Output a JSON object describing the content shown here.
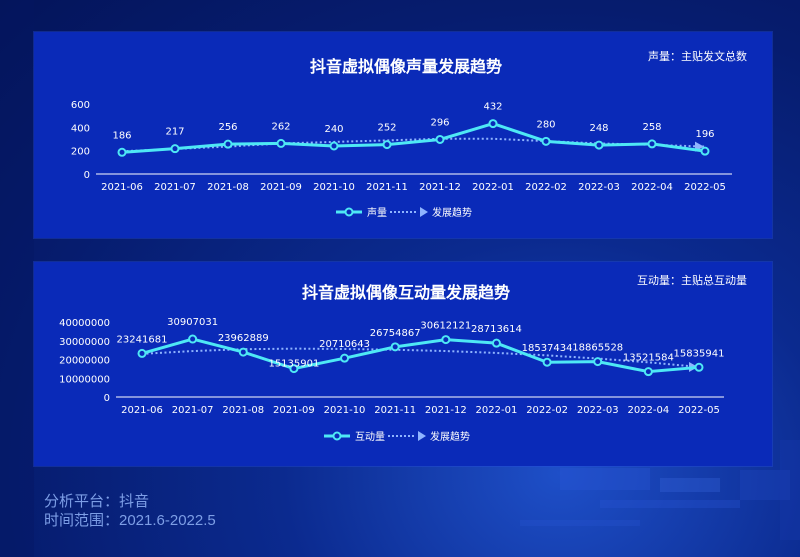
{
  "footer": {
    "platform_line": "分析平台：抖音",
    "range_line": "时间范围：2021.6-2022.5"
  },
  "colors": {
    "page_bg": "#061c6e",
    "panel_bg": "#0a2ab8",
    "series_line": "#4ee8f5",
    "trend_line": "#8fb4ff",
    "text": "#ffffff"
  },
  "chart_data": [
    {
      "type": "line",
      "title": "抖音虚拟偶像声量发展趋势",
      "note": "声量：主贴发文总数",
      "categories": [
        "2021-06",
        "2021-07",
        "2021-08",
        "2021-09",
        "2021-10",
        "2021-11",
        "2021-12",
        "2022-01",
        "2022-02",
        "2022-03",
        "2022-04",
        "2022-05"
      ],
      "series": [
        {
          "name": "声量",
          "values": [
            186,
            217,
            256,
            262,
            240,
            252,
            296,
            432,
            280,
            248,
            258,
            196
          ]
        },
        {
          "name": "发展趋势",
          "style": "dotted-trend",
          "values": [
            195,
            215,
            235,
            262,
            275,
            288,
            302,
            302,
            282,
            262,
            250,
            235
          ]
        }
      ],
      "yticks": [
        0,
        200,
        400,
        600
      ],
      "ylim": [
        0,
        600
      ],
      "legend": "bottom-center",
      "grid": false
    },
    {
      "type": "line",
      "title": "抖音虚拟偶像互动量发展趋势",
      "note": "互动量：主贴总互动量",
      "categories": [
        "2021-06",
        "2021-07",
        "2021-08",
        "2021-09",
        "2021-10",
        "2021-11",
        "2021-12",
        "2022-01",
        "2022-02",
        "2022-03",
        "2022-04",
        "2022-05"
      ],
      "series": [
        {
          "name": "互动量",
          "values": [
            23241681,
            30907031,
            23962889,
            15135901,
            20710643,
            26754867,
            30612121,
            28713614,
            18537434,
            18865528,
            13521584,
            15835941
          ]
        },
        {
          "name": "发展趋势",
          "style": "dotted-trend",
          "values": [
            23000000,
            24500000,
            25500000,
            25800000,
            25600000,
            25200000,
            24500000,
            23500000,
            22200000,
            20500000,
            18500000,
            16000000
          ]
        }
      ],
      "yticks": [
        0,
        10000000,
        20000000,
        30000000,
        40000000
      ],
      "ylim": [
        0,
        40000000
      ],
      "legend": "bottom-center",
      "grid": false
    }
  ]
}
